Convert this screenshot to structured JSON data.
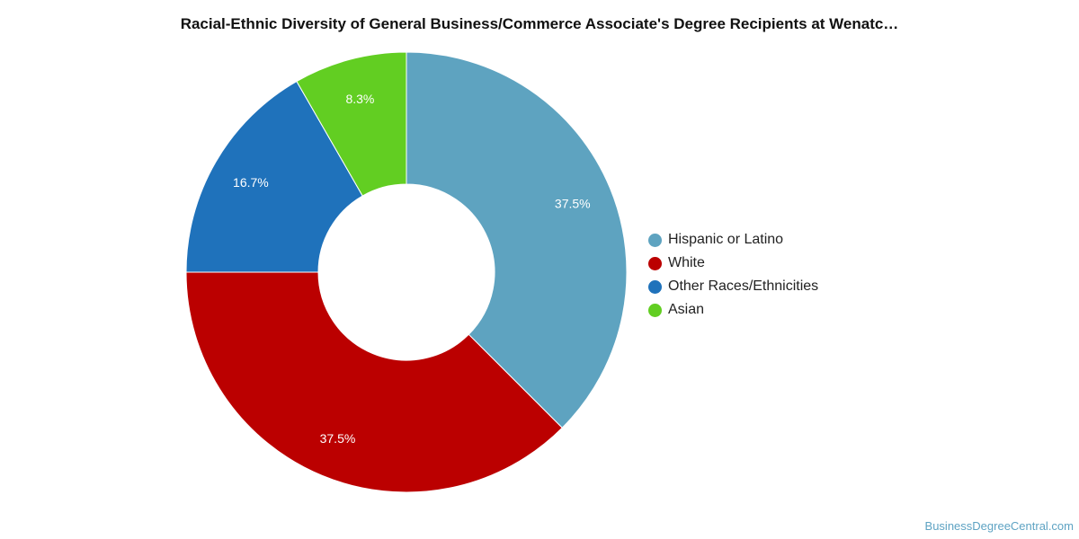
{
  "chart_data": {
    "type": "pie",
    "title": "Racial-Ethnic Diversity of General Business/Commerce Associate's Degree Recipients at Wenatc…",
    "donut": true,
    "legend_position": "right",
    "slices": [
      {
        "label": "Hispanic or Latino",
        "value": 37.5,
        "value_label": "37.5%",
        "color": "#5ea3c0"
      },
      {
        "label": "White",
        "value": 37.5,
        "value_label": "37.5%",
        "color": "#bb0000"
      },
      {
        "label": "Other Races/Ethnicities",
        "value": 16.7,
        "value_label": "16.7%",
        "color": "#1f72bb"
      },
      {
        "label": "Asian",
        "value": 8.3,
        "value_label": "8.3%",
        "color": "#62ce22"
      }
    ]
  },
  "watermark": "BusinessDegreeCentral.com"
}
